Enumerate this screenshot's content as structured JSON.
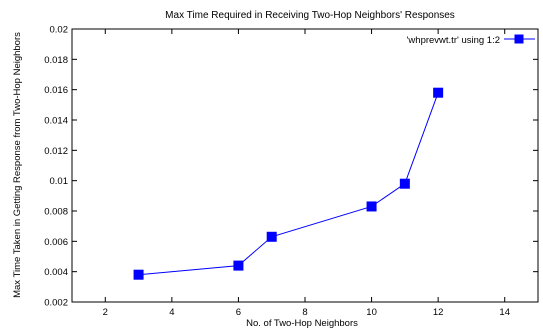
{
  "chart_data": {
    "type": "line",
    "title": "Max Time Required in Receiving Two-Hop Neighbors' Responses",
    "xlabel": "No. of Two-Hop Neighbors",
    "ylabel": "Max Time Taken in Getting Response from Two-Hop Neighbors",
    "xlim": [
      1,
      15
    ],
    "ylim": [
      0.002,
      0.02
    ],
    "xticks": [
      2,
      4,
      6,
      8,
      10,
      12,
      14
    ],
    "yticks": [
      0.002,
      0.004,
      0.006,
      0.008,
      0.01,
      0.012,
      0.014,
      0.016,
      0.018,
      0.02
    ],
    "xtick_labels": [
      "2",
      "4",
      "6",
      "8",
      "10",
      "12",
      "14"
    ],
    "ytick_labels": [
      "0.002",
      "0.004",
      "0.006",
      "0.008",
      "0.01",
      "0.012",
      "0.014",
      "0.016",
      "0.018",
      "0.02"
    ],
    "grid": false,
    "legend_position": "top-right",
    "series": [
      {
        "name": "'whprevwt.tr' using 1:2",
        "color": "#0000ff",
        "marker": "square",
        "x": [
          3,
          6,
          7,
          10,
          11,
          12
        ],
        "y": [
          0.0038,
          0.0044,
          0.0063,
          0.0083,
          0.0098,
          0.0158
        ]
      }
    ]
  }
}
